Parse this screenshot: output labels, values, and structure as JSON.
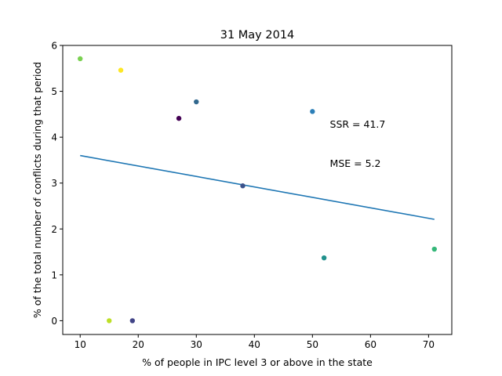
{
  "chart_data": {
    "type": "scatter",
    "title": "31 May 2014",
    "xlabel": "% of people in IPC level 3 or above in the state",
    "ylabel": "% of the total number of conflicts during that period",
    "xlim": [
      7,
      74
    ],
    "ylim": [
      -0.3,
      6.0
    ],
    "xticks": [
      10,
      20,
      30,
      40,
      50,
      60,
      70
    ],
    "yticks": [
      0,
      1,
      2,
      3,
      4,
      5,
      6
    ],
    "grid": false,
    "points": [
      {
        "x": 10,
        "y": 5.71,
        "color": "#7ad151"
      },
      {
        "x": 17,
        "y": 5.46,
        "color": "#fde725"
      },
      {
        "x": 27,
        "y": 4.41,
        "color": "#440154"
      },
      {
        "x": 30,
        "y": 4.77,
        "color": "#31688e"
      },
      {
        "x": 50,
        "y": 4.56,
        "color": "#2c7fb8"
      },
      {
        "x": 38,
        "y": 2.94,
        "color": "#3b528b"
      },
      {
        "x": 52,
        "y": 1.37,
        "color": "#21918c"
      },
      {
        "x": 71,
        "y": 1.56,
        "color": "#35b779"
      },
      {
        "x": 15,
        "y": 0.0,
        "color": "#bddf26"
      },
      {
        "x": 19,
        "y": 0.0,
        "color": "#414487"
      }
    ],
    "fit_line": {
      "x": [
        10,
        71
      ],
      "y": [
        3.6,
        2.21
      ],
      "color": "#1f77b4"
    },
    "annotations": [
      {
        "text": "SSR = 41.7",
        "x": 53,
        "y": 4.28
      },
      {
        "text": "MSE = 5.2",
        "x": 53,
        "y": 3.43
      }
    ]
  }
}
